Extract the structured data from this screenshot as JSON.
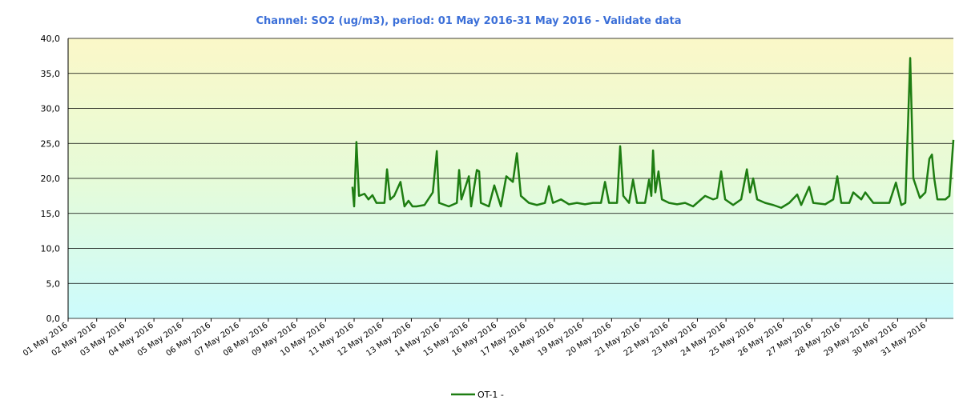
{
  "chart_data": {
    "type": "line",
    "title": "Channel: SO2 (ug/m3), period: 01 May 2016-31 May 2016 - Validate data",
    "x": [
      9.94,
      10.0,
      10.08,
      10.17,
      10.36,
      10.5,
      10.64,
      10.78,
      11.06,
      11.15,
      11.26,
      11.4,
      11.62,
      11.76,
      11.9,
      12.04,
      12.18,
      12.46,
      12.75,
      12.89,
      12.97,
      13.31,
      13.59,
      13.67,
      13.75,
      14.01,
      14.09,
      14.29,
      14.37,
      14.43,
      14.71,
      14.9,
      15.13,
      15.32,
      15.55,
      15.69,
      15.83,
      16.11,
      16.39,
      16.67,
      16.81,
      16.95,
      17.23,
      17.51,
      17.79,
      18.07,
      18.35,
      18.63,
      18.77,
      18.91,
      19.19,
      19.3,
      19.41,
      19.61,
      19.75,
      19.89,
      20.17,
      20.31,
      20.39,
      20.45,
      20.53,
      20.64,
      20.76,
      21.01,
      21.29,
      21.57,
      21.85,
      22.27,
      22.55,
      22.69,
      22.83,
      22.97,
      23.25,
      23.53,
      23.73,
      23.84,
      23.95,
      24.09,
      24.37,
      24.65,
      24.93,
      25.21,
      25.49,
      25.63,
      25.91,
      26.05,
      26.47,
      26.75,
      26.89,
      27.03,
      27.31,
      27.45,
      27.73,
      27.87,
      28.15,
      28.43,
      28.71,
      28.94,
      29.13,
      29.27,
      29.44,
      29.55,
      29.78,
      29.97,
      30.11,
      30.2,
      30.28,
      30.39,
      30.67,
      30.81,
      30.95
    ],
    "series": [
      {
        "name": "OT-1 -",
        "color": "#1e7d12",
        "values": [
          18.8,
          16,
          25.2,
          17.5,
          17.8,
          17,
          17.6,
          16.5,
          16.5,
          21.3,
          17,
          17.5,
          19.5,
          16,
          16.8,
          16,
          16,
          16.2,
          18,
          23.9,
          16.5,
          16,
          16.5,
          21.2,
          17,
          20.3,
          16,
          21.2,
          21,
          16.5,
          16,
          19,
          16,
          20.3,
          19.5,
          23.6,
          17.5,
          16.5,
          16.2,
          16.5,
          18.9,
          16.5,
          17,
          16.3,
          16.5,
          16.3,
          16.5,
          16.5,
          19.5,
          16.5,
          16.5,
          24.6,
          17.5,
          16.5,
          19.8,
          16.5,
          16.5,
          19.8,
          17.5,
          24,
          18,
          21,
          17,
          16.5,
          16.3,
          16.5,
          16,
          17.5,
          17,
          17.2,
          21,
          17,
          16.2,
          17,
          21.3,
          18,
          20,
          17,
          16.5,
          16.2,
          15.8,
          16.5,
          17.7,
          16.2,
          18.8,
          16.5,
          16.3,
          17,
          20.3,
          16.5,
          16.5,
          18,
          17,
          18,
          16.5,
          16.5,
          16.5,
          19.4,
          16.2,
          16.5,
          37.2,
          20,
          17.2,
          18,
          22.8,
          23.4,
          20,
          17,
          17,
          17.5,
          25.5
        ]
      }
    ],
    "xlim": [
      0,
      30.95
    ],
    "xticks": [
      {
        "value": 0,
        "label": "01 May 2016"
      },
      {
        "value": 1,
        "label": "02 May 2016"
      },
      {
        "value": 2,
        "label": "03 May 2016"
      },
      {
        "value": 3,
        "label": "04 May 2016"
      },
      {
        "value": 4,
        "label": "05 May 2016"
      },
      {
        "value": 5,
        "label": "06 May 2016"
      },
      {
        "value": 6,
        "label": "07 May 2016"
      },
      {
        "value": 7,
        "label": "08 May 2016"
      },
      {
        "value": 8,
        "label": "09 May 2016"
      },
      {
        "value": 9,
        "label": "10 May 2016"
      },
      {
        "value": 10,
        "label": "11 May 2016"
      },
      {
        "value": 11,
        "label": "12 May 2016"
      },
      {
        "value": 12,
        "label": "13 May 2016"
      },
      {
        "value": 13,
        "label": "14 May 2016"
      },
      {
        "value": 14,
        "label": "15 May 2016"
      },
      {
        "value": 15,
        "label": "16 May 2016"
      },
      {
        "value": 16,
        "label": "17 May 2016"
      },
      {
        "value": 17,
        "label": "18 May 2016"
      },
      {
        "value": 18,
        "label": "19 May 2016"
      },
      {
        "value": 19,
        "label": "20 May 2016"
      },
      {
        "value": 20,
        "label": "21 May 2016"
      },
      {
        "value": 21,
        "label": "22 May 2016"
      },
      {
        "value": 22,
        "label": "23 May 2016"
      },
      {
        "value": 23,
        "label": "24 May 2016"
      },
      {
        "value": 24,
        "label": "25 May 2016"
      },
      {
        "value": 25,
        "label": "26 May 2016"
      },
      {
        "value": 26,
        "label": "27 May 2016"
      },
      {
        "value": 27,
        "label": "28 May 2016"
      },
      {
        "value": 28,
        "label": "29 May 2016"
      },
      {
        "value": 29,
        "label": "30 May 2016"
      },
      {
        "value": 30,
        "label": "31 May 2016"
      }
    ],
    "ylim": [
      0,
      40
    ],
    "yticks": [
      {
        "value": 0,
        "label": "0,0"
      },
      {
        "value": 5,
        "label": "5,0"
      },
      {
        "value": 10,
        "label": "10,0"
      },
      {
        "value": 15,
        "label": "15,0"
      },
      {
        "value": 20,
        "label": "20,0"
      },
      {
        "value": 25,
        "label": "25,0"
      },
      {
        "value": 30,
        "label": "30,0"
      },
      {
        "value": 35,
        "label": "35,0"
      },
      {
        "value": 40,
        "label": "40,0"
      }
    ],
    "grid": true
  }
}
